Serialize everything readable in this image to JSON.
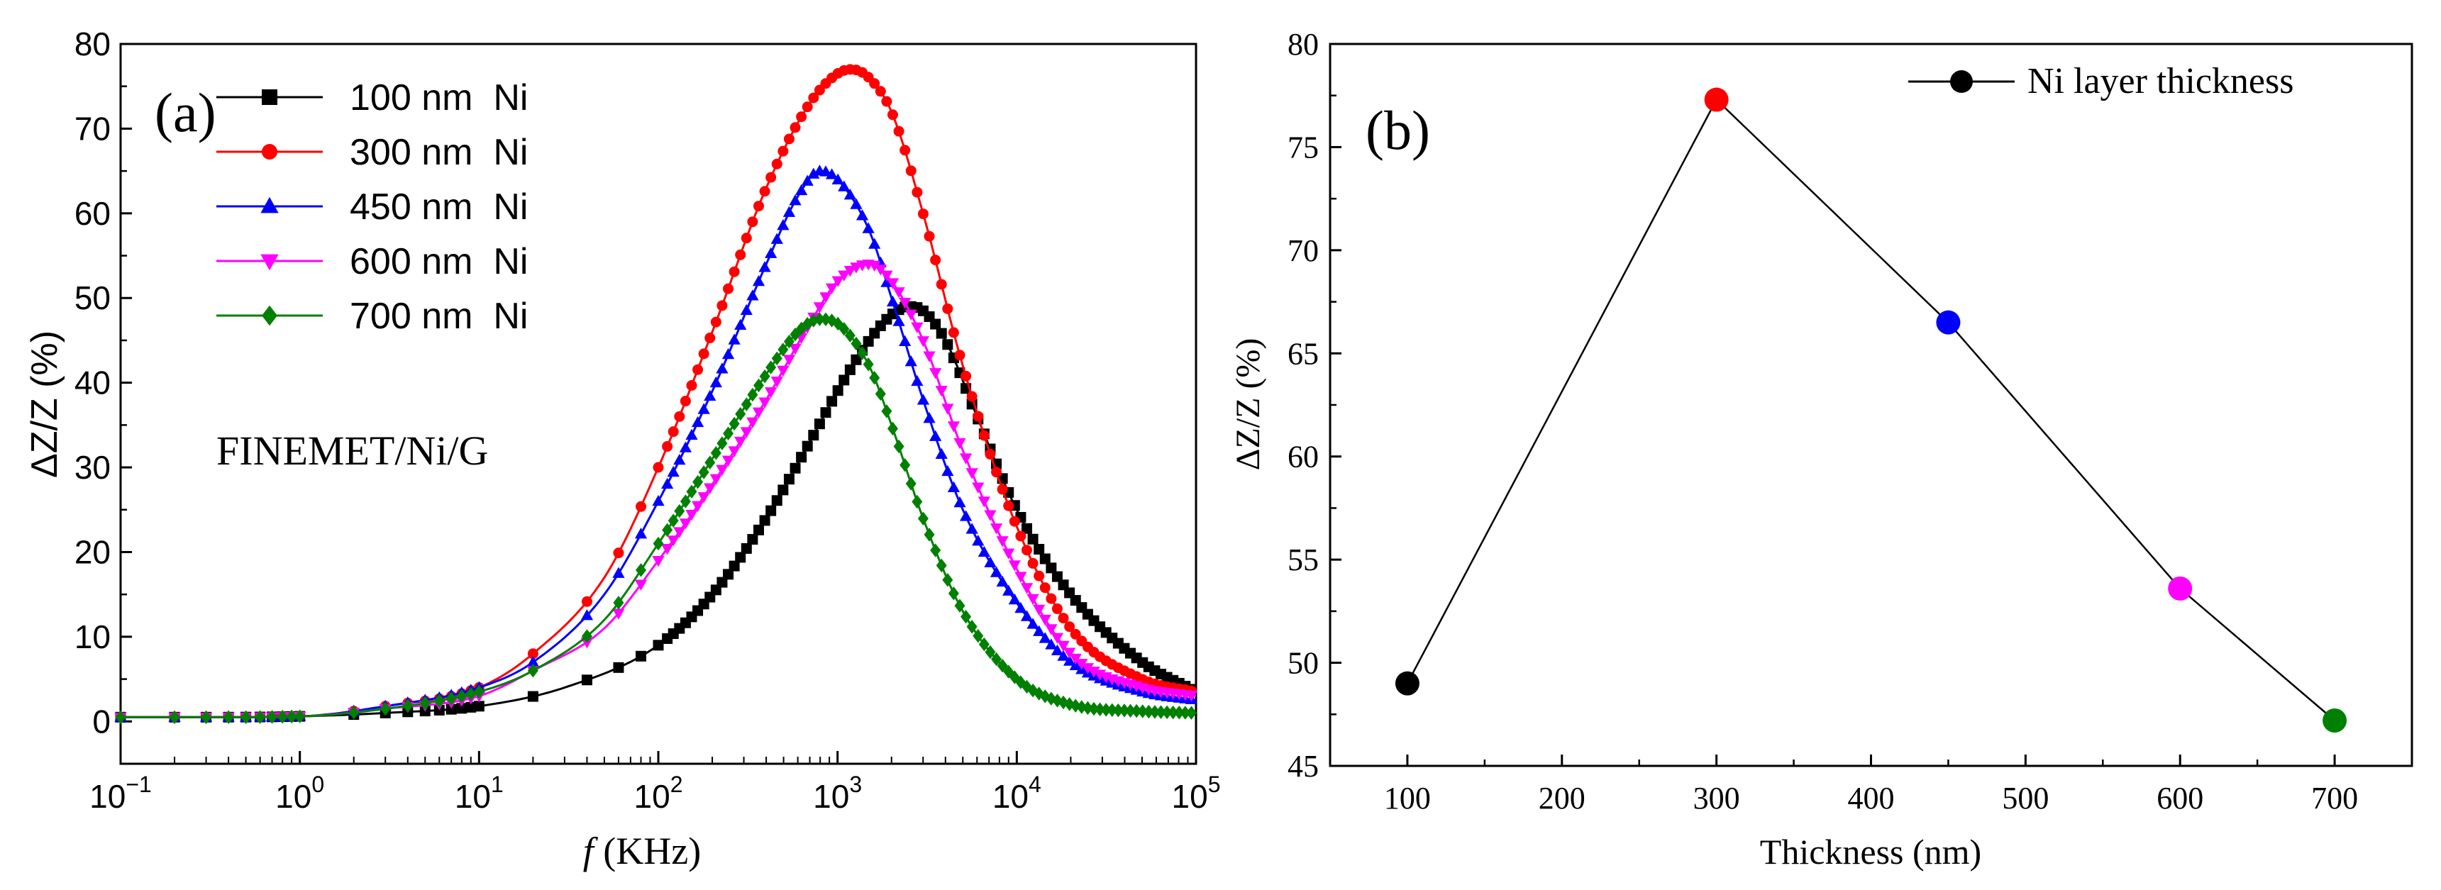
{
  "figure": "ΔZ/Z (%) versus frequency and versus Ni layer thickness",
  "chart_data": [
    {
      "id": "a",
      "type": "line",
      "panel_label": "(a)",
      "annotation": "FINEMET/Ni/G",
      "xlabel_italic": "f",
      "xlabel_rest": " (KHz)",
      "ylabel": "ΔZ/Z (%)",
      "xscale": "log",
      "xlim": [
        0.1,
        100000
      ],
      "ylim": [
        -5,
        80
      ],
      "xticks": [
        {
          "value": 0.1,
          "base": "10",
          "exp": "−1"
        },
        {
          "value": 1,
          "base": "10",
          "exp": "0"
        },
        {
          "value": 10,
          "base": "10",
          "exp": "1"
        },
        {
          "value": 100,
          "base": "10",
          "exp": "2"
        },
        {
          "value": 1000,
          "base": "10",
          "exp": "3"
        },
        {
          "value": 10000,
          "base": "10",
          "exp": "4"
        },
        {
          "value": 100000,
          "base": "10",
          "exp": "5"
        }
      ],
      "yticks": [
        0,
        10,
        20,
        30,
        40,
        50,
        60,
        70,
        80
      ],
      "legend_position": "top-left",
      "series": [
        {
          "name": "100 nm  Ni",
          "color": "#000000",
          "marker": "square",
          "x": [
            0.1,
            0.3,
            1,
            3,
            10,
            30,
            100,
            200,
            400,
            700,
            1000,
            1500,
            2000,
            2500,
            3000,
            4000,
            6000,
            10000,
            20000,
            50000,
            100000
          ],
          "y": [
            0.5,
            0.5,
            0.6,
            1.0,
            1.8,
            4,
            9,
            15,
            24,
            33,
            39,
            45,
            48,
            49,
            48.5,
            45,
            36,
            25,
            15,
            7,
            3.5
          ]
        },
        {
          "name": "300 nm  Ni",
          "color": "#ff0000",
          "marker": "circle",
          "x": [
            0.1,
            0.3,
            1,
            3,
            10,
            20,
            50,
            100,
            200,
            400,
            700,
            1000,
            1200,
            1500,
            2000,
            3000,
            5000,
            10000,
            20000,
            50000,
            100000
          ],
          "y": [
            0.5,
            0.5,
            0.6,
            1.8,
            4,
            8,
            17,
            30,
            46,
            63,
            73,
            76.5,
            77,
            76,
            72,
            60,
            42,
            23,
            11,
            5,
            3.5
          ]
        },
        {
          "name": "450 nm  Ni",
          "color": "#0000ff",
          "marker": "triangle-up",
          "x": [
            0.1,
            0.3,
            1,
            3,
            10,
            20,
            50,
            100,
            200,
            400,
            600,
            800,
            1000,
            1500,
            2000,
            3000,
            5000,
            10000,
            20000,
            50000,
            100000
          ],
          "y": [
            0.5,
            0.5,
            0.6,
            1.8,
            4,
            7,
            15,
            26,
            39,
            54,
            62,
            65,
            64,
            58,
            50,
            38,
            25,
            14,
            7,
            3.5,
            2.5
          ]
        },
        {
          "name": "600 nm  Ni",
          "color": "#ff00ff",
          "marker": "triangle-down",
          "x": [
            0.1,
            0.3,
            1,
            3,
            10,
            20,
            50,
            100,
            200,
            400,
            700,
            1000,
            1500,
            2000,
            3000,
            5000,
            10000,
            20000,
            50000,
            100000
          ],
          "y": [
            0.5,
            0.5,
            0.6,
            1.5,
            3,
            6,
            11,
            19,
            28,
            38,
            47,
            52,
            54,
            52,
            45,
            32,
            18,
            8,
            4,
            3
          ]
        },
        {
          "name": "700 nm  Ni",
          "color": "#008000",
          "marker": "diamond",
          "x": [
            0.1,
            0.3,
            1,
            3,
            10,
            20,
            50,
            100,
            200,
            400,
            600,
            800,
            1000,
            1500,
            2000,
            3000,
            5000,
            10000,
            20000,
            50000,
            100000
          ],
          "y": [
            0.5,
            0.5,
            0.6,
            1.5,
            3.5,
            6,
            12,
            21,
            31,
            41,
            46,
            47.5,
            47,
            42,
            35,
            24,
            13,
            5,
            2,
            1.2,
            1
          ]
        }
      ]
    },
    {
      "id": "b",
      "type": "line",
      "panel_label": "(b)",
      "xlabel": "Thickness (nm)",
      "ylabel": "ΔZ/Z (%)",
      "xlim": [
        50,
        750
      ],
      "ylim": [
        45,
        80
      ],
      "xticks": [
        100,
        200,
        300,
        400,
        500,
        600,
        700
      ],
      "yticks": [
        45,
        50,
        55,
        60,
        65,
        70,
        75,
        80
      ],
      "legend_position": "top-right",
      "series": [
        {
          "name": "Ni layer thickness",
          "color": "#000000",
          "marker": "circle",
          "x": [
            100,
            300,
            450,
            600,
            700
          ],
          "y": [
            49,
            77.3,
            66.5,
            53.6,
            47.2
          ],
          "point_colors": [
            "#000000",
            "#ff0000",
            "#0000ff",
            "#ff00ff",
            "#008000"
          ]
        }
      ]
    }
  ]
}
